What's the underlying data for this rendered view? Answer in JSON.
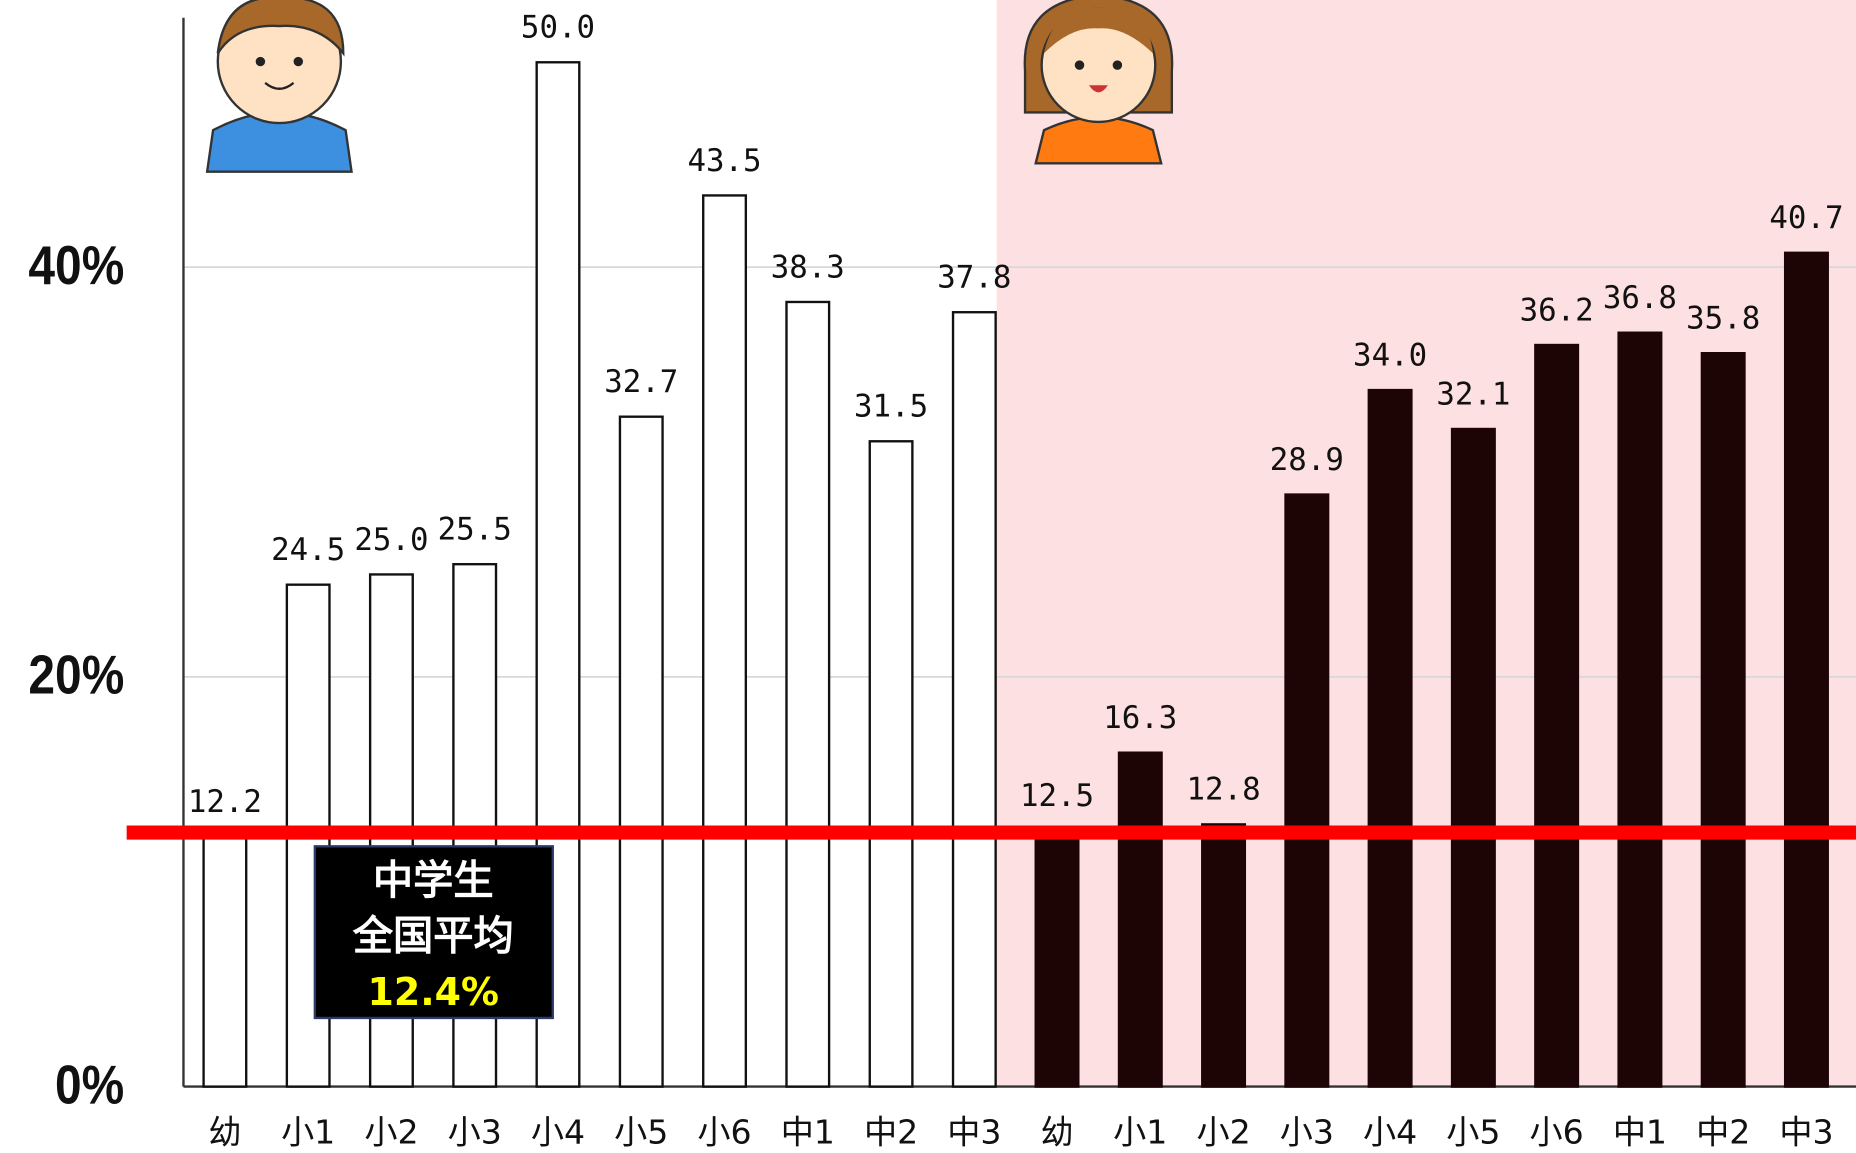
{
  "chart_data": {
    "type": "bar",
    "categories": [
      "幼",
      "小1",
      "小2",
      "小3",
      "小4",
      "小5",
      "小6",
      "中1",
      "中2",
      "中3"
    ],
    "series": [
      {
        "color": "#ffffff",
        "values": [
          12.2,
          24.5,
          25.0,
          25.5,
          50.0,
          32.7,
          43.5,
          38.3,
          31.5,
          37.8
        ],
        "value_labels": [
          "12.2",
          "24.5",
          "25.0",
          "25.5",
          "50.0",
          "32.7",
          "43.5",
          "38.3",
          "31.5",
          "37.8"
        ]
      },
      {
        "color": "#1e0505",
        "values": [
          12.5,
          16.3,
          12.8,
          28.9,
          34.0,
          32.1,
          36.2,
          36.8,
          35.8,
          40.7
        ],
        "value_labels": [
          "12.5",
          "16.3",
          "12.8",
          "28.9",
          "34.0",
          "32.1",
          "36.2",
          "36.8",
          "35.8",
          "40.7"
        ]
      }
    ],
    "ylim": [
      0,
      52
    ],
    "yticks": [
      {
        "value": 0,
        "label": "0%"
      },
      {
        "value": 20,
        "label": "20%"
      },
      {
        "value": 40,
        "label": "40%"
      }
    ],
    "grid": true,
    "reference": {
      "value": 12.4,
      "color": "#ff0000",
      "lines": [
        "中学生",
        "全国平均"
      ],
      "value_label": "12.4%"
    }
  }
}
